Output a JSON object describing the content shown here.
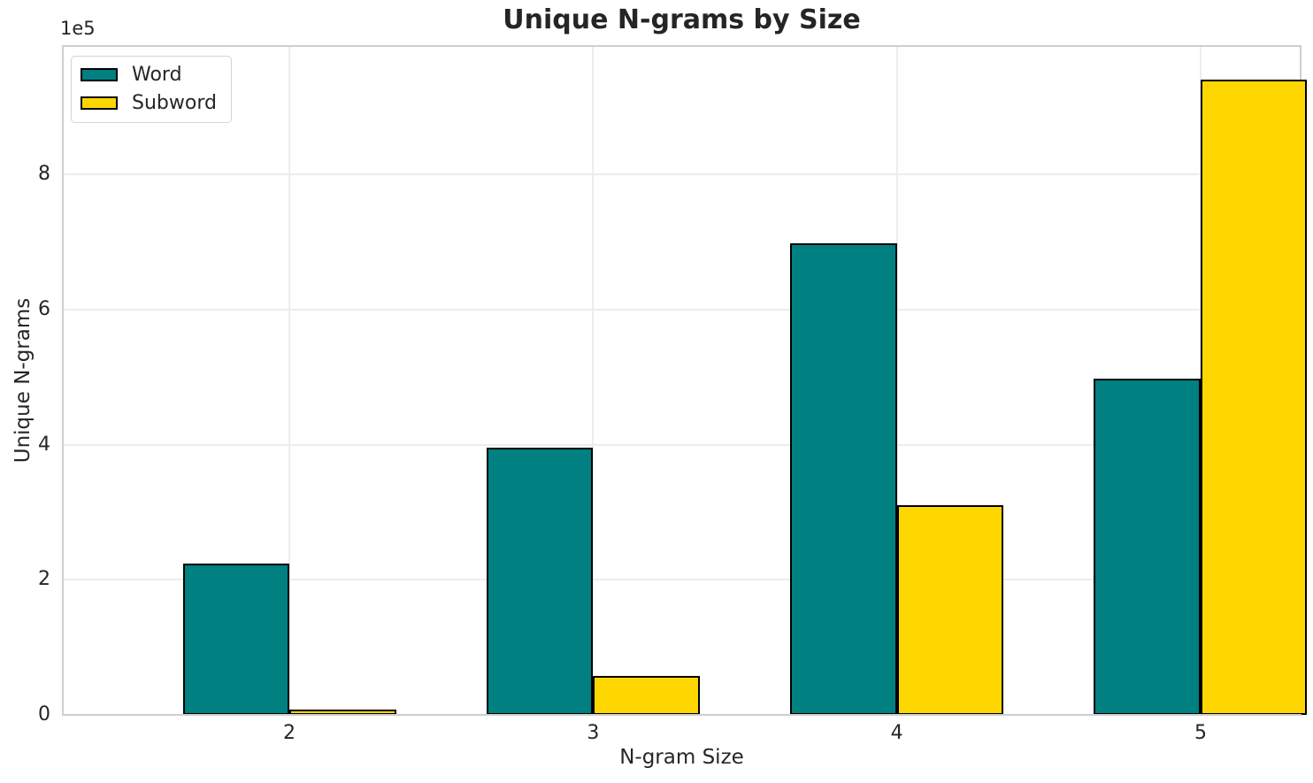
{
  "figure": {
    "background": "#ffffff",
    "text_color": "#262626"
  },
  "chart_data": {
    "type": "bar",
    "title": "Unique N-grams by Size",
    "xlabel": "N-gram Size",
    "ylabel": "Unique N-grams",
    "scale_offset_label": "1e5",
    "categories": [
      "2",
      "3",
      "4",
      "5"
    ],
    "series": [
      {
        "name": "Word",
        "color": "#008080",
        "values": [
          224000,
          395000,
          698000,
          497000
        ]
      },
      {
        "name": "Subword",
        "color": "#FFD700",
        "values": [
          8000,
          57000,
          310000,
          940000
        ]
      }
    ],
    "bar_edge_color": "#000000",
    "ylim": [
      0,
      990000
    ],
    "yticks": {
      "values": [
        0,
        200000,
        400000,
        600000,
        800000
      ],
      "labels": [
        "0",
        "2",
        "4",
        "6",
        "8"
      ]
    },
    "grid": true,
    "grid_color": "#ededed",
    "axes_edge_color": "#cfcfcf",
    "legend_position": "upper-left",
    "legend_labels": [
      "Word",
      "Subword"
    ]
  }
}
